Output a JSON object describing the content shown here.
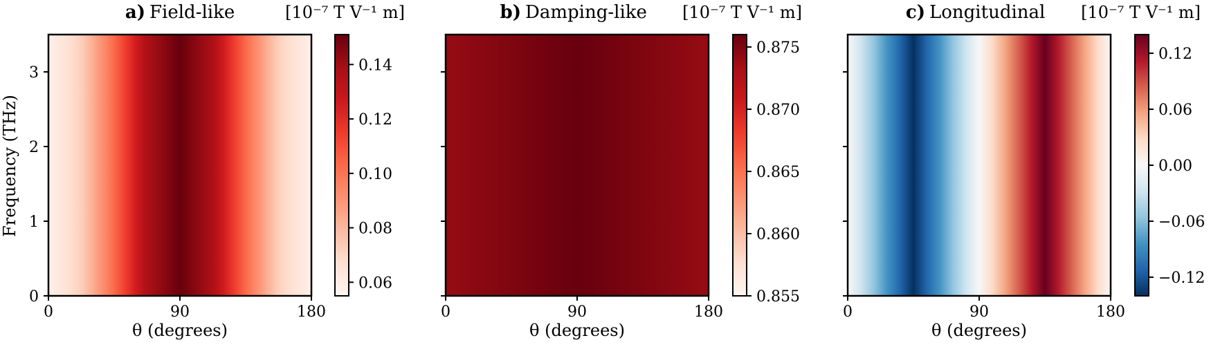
{
  "chart_data": [
    {
      "type": "heatmap",
      "panel_letter": "a)",
      "title": "Field-like",
      "units": "[10⁻⁷ T V⁻¹ m]",
      "xlabel": "θ (degrees)",
      "ylabel": "Frequency (THz)",
      "xlim": [
        0,
        180
      ],
      "ylim": [
        0,
        3.5
      ],
      "x_ticks": [
        "0",
        "90",
        "180"
      ],
      "y_ticks": [
        "0",
        "1",
        "2",
        "3"
      ],
      "x_tick_values": [
        0,
        90,
        180
      ],
      "y_tick_values": [
        0,
        1,
        2,
        3
      ],
      "colormap": "Reds",
      "colorbar_range": [
        0.055,
        0.151
      ],
      "colorbar_ticks": [
        0.06,
        0.08,
        0.1,
        0.12,
        0.14
      ],
      "colorbar_tick_labels": [
        "0.06",
        "0.08",
        "0.10",
        "0.12",
        "0.14"
      ],
      "profile_theta": [
        0,
        22.5,
        45,
        67.5,
        90,
        112.5,
        135,
        157.5,
        180
      ],
      "profile_values": [
        0.058,
        0.072,
        0.103,
        0.137,
        0.151,
        0.137,
        0.103,
        0.072,
        0.058
      ],
      "frequency_dependence": "none"
    },
    {
      "type": "heatmap",
      "panel_letter": "b)",
      "title": "Damping-like",
      "units": "[10⁻⁷ T V⁻¹ m]",
      "xlabel": "θ (degrees)",
      "ylabel": "",
      "xlim": [
        0,
        180
      ],
      "ylim": [
        0,
        3.5
      ],
      "x_ticks": [
        "0",
        "90",
        "180"
      ],
      "y_ticks": [
        "",
        "",
        "",
        ""
      ],
      "x_tick_values": [
        0,
        90,
        180
      ],
      "y_tick_values": [
        0,
        1,
        2,
        3
      ],
      "colormap": "Reds",
      "colorbar_range": [
        0.855,
        0.876
      ],
      "colorbar_ticks": [
        0.855,
        0.86,
        0.865,
        0.87,
        0.875
      ],
      "colorbar_tick_labels": [
        "0.855",
        "0.860",
        "0.865",
        "0.870",
        "0.875"
      ],
      "profile_theta": [
        0,
        90,
        180
      ],
      "profile_values": [
        0.874,
        0.876,
        0.874
      ],
      "frequency_dependence": "none"
    },
    {
      "type": "heatmap",
      "panel_letter": "c)",
      "title": "Longitudinal",
      "units": "[10⁻⁷ T V⁻¹ m]",
      "xlabel": "θ (degrees)",
      "ylabel": "",
      "xlim": [
        0,
        180
      ],
      "ylim": [
        0,
        3.5
      ],
      "x_ticks": [
        "0",
        "90",
        "180"
      ],
      "y_ticks": [
        "",
        "",
        "",
        ""
      ],
      "x_tick_values": [
        0,
        90,
        180
      ],
      "y_tick_values": [
        0,
        1,
        2,
        3
      ],
      "colormap": "RdBu_r",
      "colorbar_range": [
        -0.14,
        0.14
      ],
      "colorbar_ticks": [
        -0.12,
        -0.06,
        0.0,
        0.06,
        0.12
      ],
      "colorbar_tick_labels": [
        "−0.12",
        "−0.06",
        "0.00",
        "0.06",
        "0.12"
      ],
      "profile_theta": [
        0,
        45,
        90,
        135,
        180
      ],
      "profile_values": [
        0.0,
        -0.14,
        0.0,
        0.14,
        0.0
      ],
      "frequency_dependence": "none"
    }
  ]
}
